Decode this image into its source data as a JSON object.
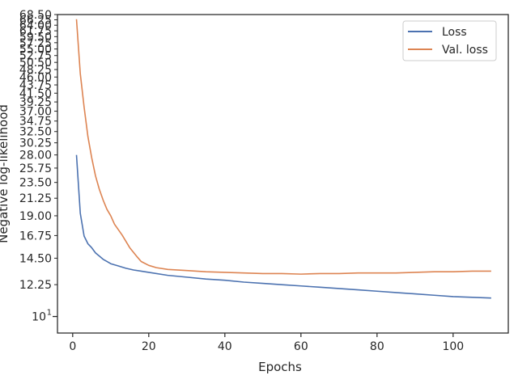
{
  "chart_data": {
    "type": "line",
    "xlabel": "Epochs",
    "ylabel": "Negative log-likelihood",
    "yscale": "log",
    "xlim": [
      -4,
      114.5
    ],
    "ylim": [
      9.0,
      68.5
    ],
    "xticks": [
      0,
      20,
      40,
      60,
      80,
      100
    ],
    "yticks": [
      12.25,
      14.5,
      16.75,
      19.0,
      21.25,
      23.5,
      25.75,
      28.0,
      30.25,
      32.5,
      34.75,
      37.0,
      39.25,
      41.5,
      43.75,
      46.0,
      48.25,
      50.5,
      52.75,
      55.0,
      57.25,
      59.5,
      61.75,
      64.0,
      66.25,
      68.5
    ],
    "ytick_labels": [
      "12.25",
      "14.50",
      "16.75",
      "19.00",
      "21.25",
      "23.50",
      "25.75",
      "28.00",
      "30.25",
      "32.50",
      "34.75",
      "37.00",
      "39.25",
      "41.50",
      "43.75",
      "46.00",
      "48.25",
      "50.50",
      "52.75",
      "55.00",
      "57.25",
      "59.50",
      "61.75",
      "64.00",
      "66.25",
      "68.50"
    ],
    "major_tick": {
      "value": 10,
      "base": "10",
      "exponent": "1"
    },
    "grid": false,
    "legend_position": "upper right",
    "series": [
      {
        "name": "Loss",
        "color": "#4c72b0",
        "x": [
          1,
          2,
          3,
          4,
          5,
          6,
          7,
          8,
          9,
          10,
          12,
          14,
          16,
          18,
          20,
          25,
          30,
          35,
          40,
          45,
          50,
          55,
          60,
          65,
          70,
          75,
          80,
          85,
          90,
          95,
          100,
          105,
          110
        ],
        "y": [
          28.0,
          19.3,
          16.7,
          15.9,
          15.5,
          15.0,
          14.7,
          14.4,
          14.2,
          14.0,
          13.8,
          13.6,
          13.45,
          13.35,
          13.25,
          13.0,
          12.85,
          12.7,
          12.6,
          12.45,
          12.35,
          12.25,
          12.15,
          12.05,
          11.95,
          11.85,
          11.75,
          11.65,
          11.55,
          11.45,
          11.35,
          11.3,
          11.25
        ]
      },
      {
        "name": "Val. loss",
        "color": "#dd8452",
        "x": [
          1,
          2,
          3,
          4,
          5,
          6,
          7,
          8,
          9,
          10,
          11,
          13,
          15,
          17,
          18,
          20,
          22,
          25,
          30,
          35,
          40,
          45,
          50,
          55,
          60,
          65,
          70,
          75,
          80,
          85,
          90,
          95,
          100,
          105,
          110
        ],
        "y": [
          66.5,
          47.0,
          38.0,
          31.5,
          27.5,
          24.5,
          22.5,
          21.0,
          19.8,
          19.0,
          18.0,
          16.8,
          15.5,
          14.6,
          14.2,
          13.85,
          13.65,
          13.5,
          13.4,
          13.3,
          13.25,
          13.2,
          13.15,
          13.15,
          13.1,
          13.15,
          13.15,
          13.2,
          13.2,
          13.2,
          13.25,
          13.3,
          13.3,
          13.35,
          13.35
        ]
      }
    ]
  }
}
